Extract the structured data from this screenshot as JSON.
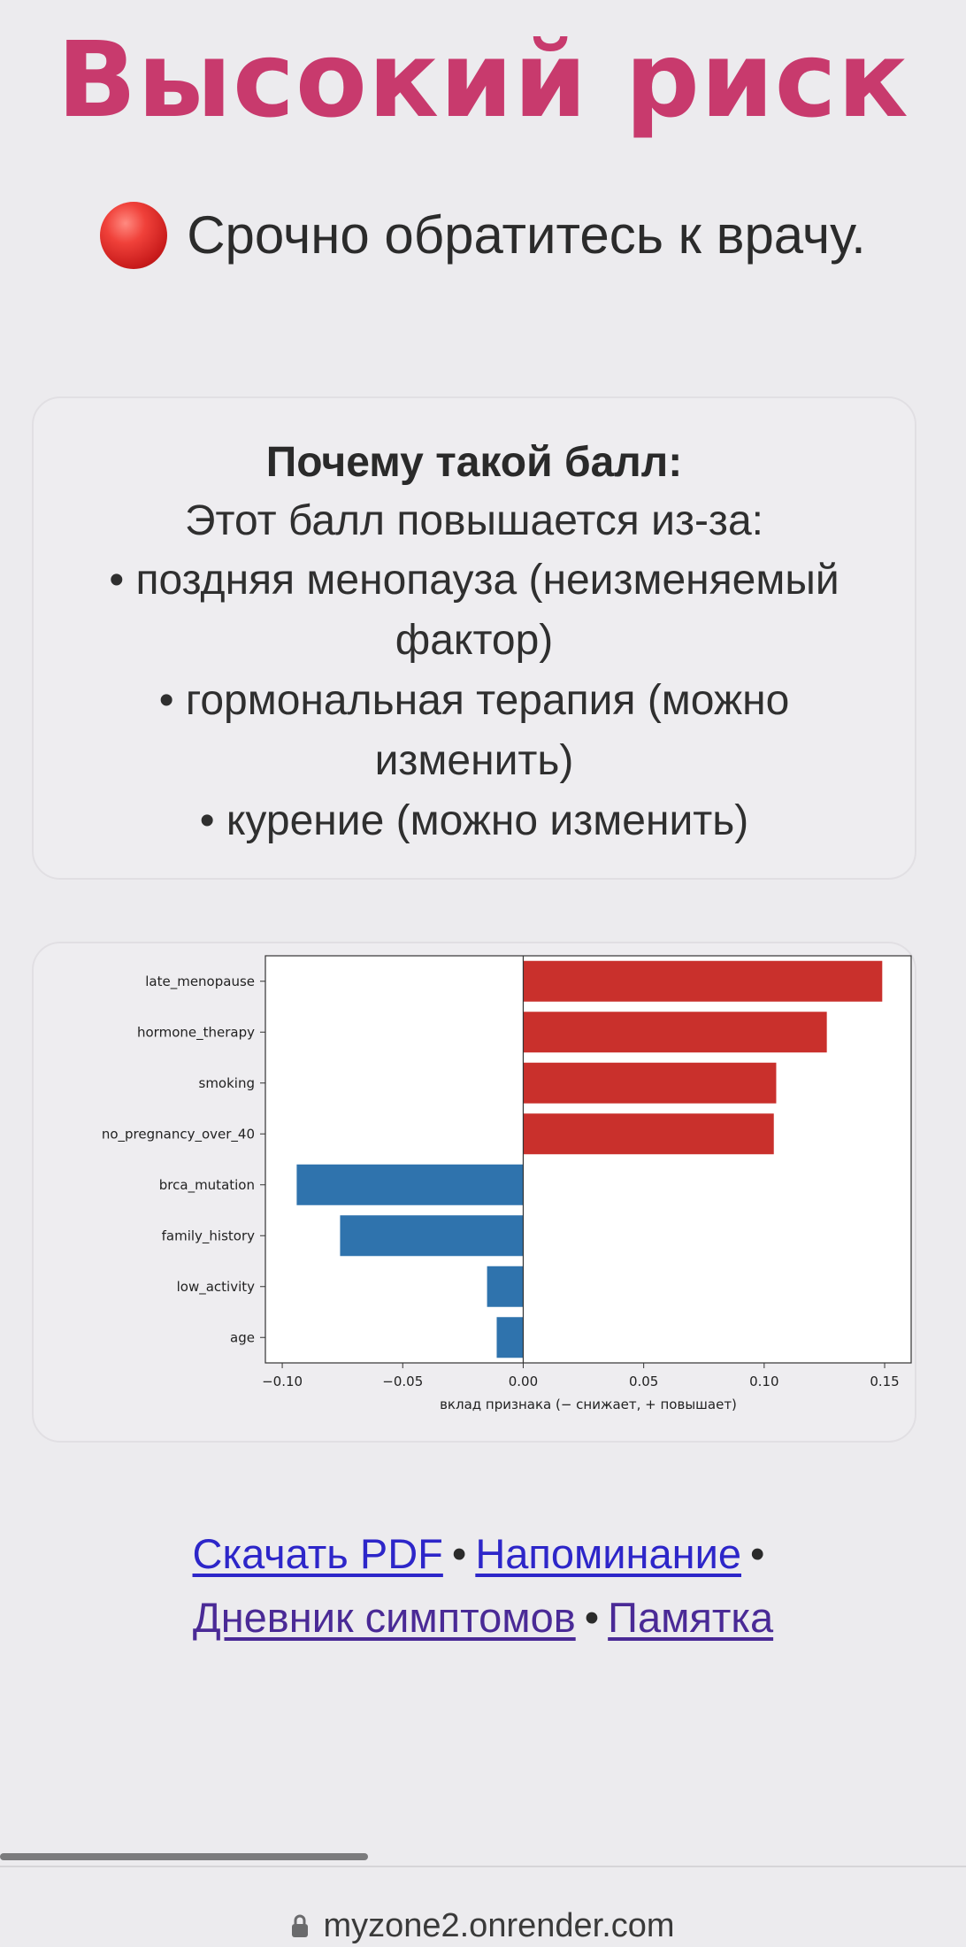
{
  "header": {
    "title": "Высокий риск",
    "alert_text": "Срочно обратитесь к врачу.",
    "alert_color": "#d32626"
  },
  "explanation": {
    "heading": "Почему такой балл:",
    "intro": "Этот балл повышается из-за:",
    "items": [
      "• поздняя менопауза (неизменяемый фактор)",
      "• гормональная терапия (можно изменить)",
      "• курение (можно изменить)"
    ]
  },
  "chart_data": {
    "type": "bar",
    "orientation": "horizontal",
    "categories": [
      "late_menopause",
      "hormone_therapy",
      "smoking",
      "no_pregnancy_over_40",
      "brca_mutation",
      "family_history",
      "low_activity",
      "age"
    ],
    "values": [
      0.149,
      0.126,
      0.105,
      0.104,
      -0.094,
      -0.076,
      -0.015,
      -0.011
    ],
    "xlabel": "вклад признака (− снижает, + повышает)",
    "ylabel": "",
    "title": "",
    "xlim": [
      -0.107,
      0.161
    ],
    "xticks": [
      -0.1,
      -0.05,
      0.0,
      0.05,
      0.1,
      0.15
    ],
    "xtick_labels": [
      "−0.10",
      "−0.05",
      "0.00",
      "0.05",
      "0.10",
      "0.15"
    ],
    "colors": {
      "positive": "#c9302c",
      "negative": "#2f73ad"
    },
    "grid": false,
    "zero_line": true
  },
  "links": {
    "download_pdf": "Скачать PDF",
    "reminder": "Напоминание",
    "symptom_diary": "Дневник симптомов",
    "memo": "Памятка",
    "separator": "•"
  },
  "browser": {
    "url": "myzone2.onrender.com"
  },
  "colors": {
    "title": "#c83a6d",
    "link": "#2d26c9",
    "link_visited": "#4a2a96",
    "background": "#ecebee"
  }
}
